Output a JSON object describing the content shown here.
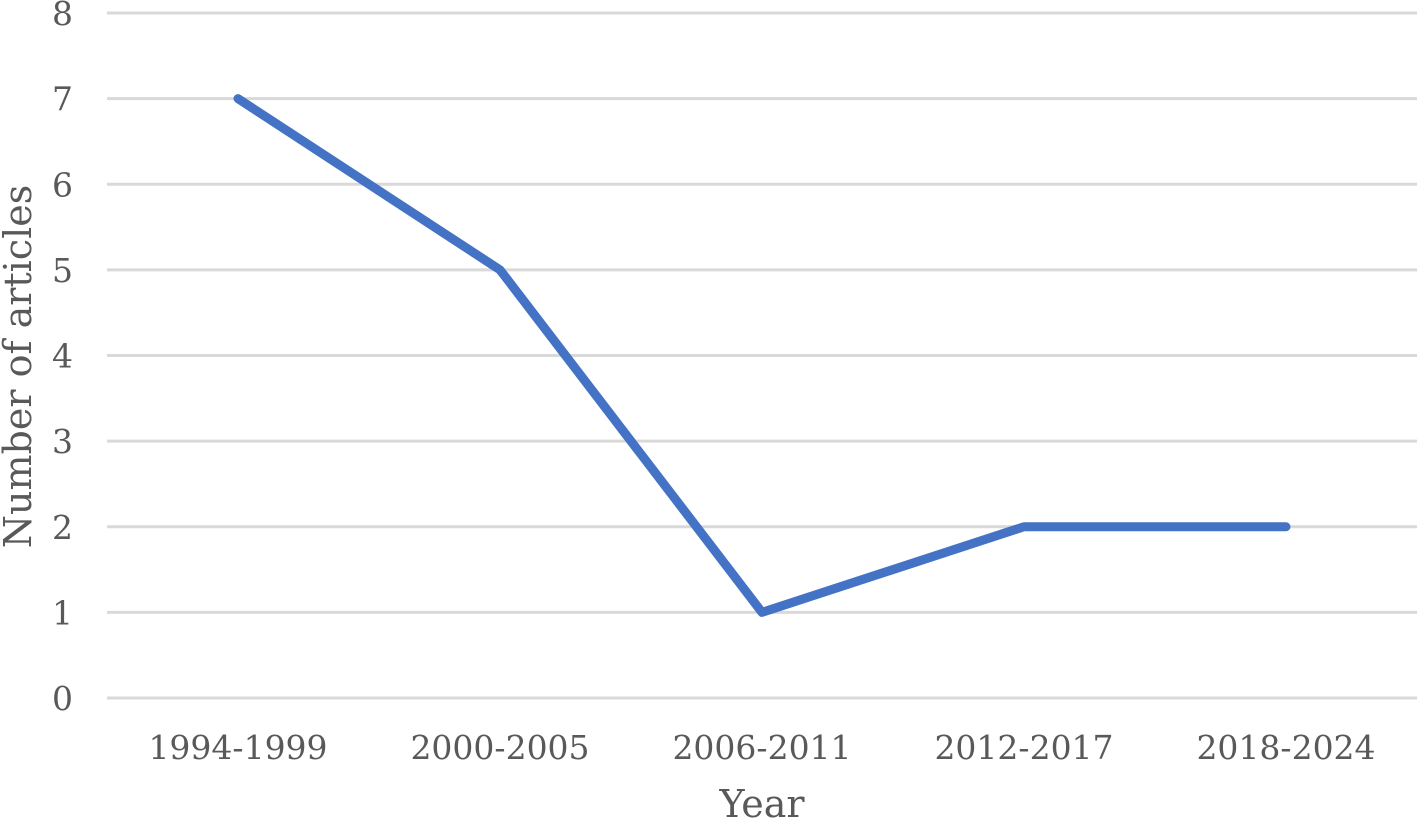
{
  "chart_data": {
    "type": "line",
    "title": "",
    "xlabel": "Year",
    "ylabel": "Number of articles",
    "categories": [
      "1994-1999",
      "2000-2005",
      "2006-2011",
      "2012-2017",
      "2018-2024"
    ],
    "series": [
      {
        "values": [
          7,
          5,
          1,
          2,
          2
        ],
        "color": "#4472C4"
      }
    ],
    "ylim": [
      0,
      8
    ],
    "yticks": [
      "0",
      "1",
      "2",
      "3",
      "4",
      "5",
      "6",
      "7",
      "8"
    ],
    "grid": true,
    "legend": "none"
  }
}
